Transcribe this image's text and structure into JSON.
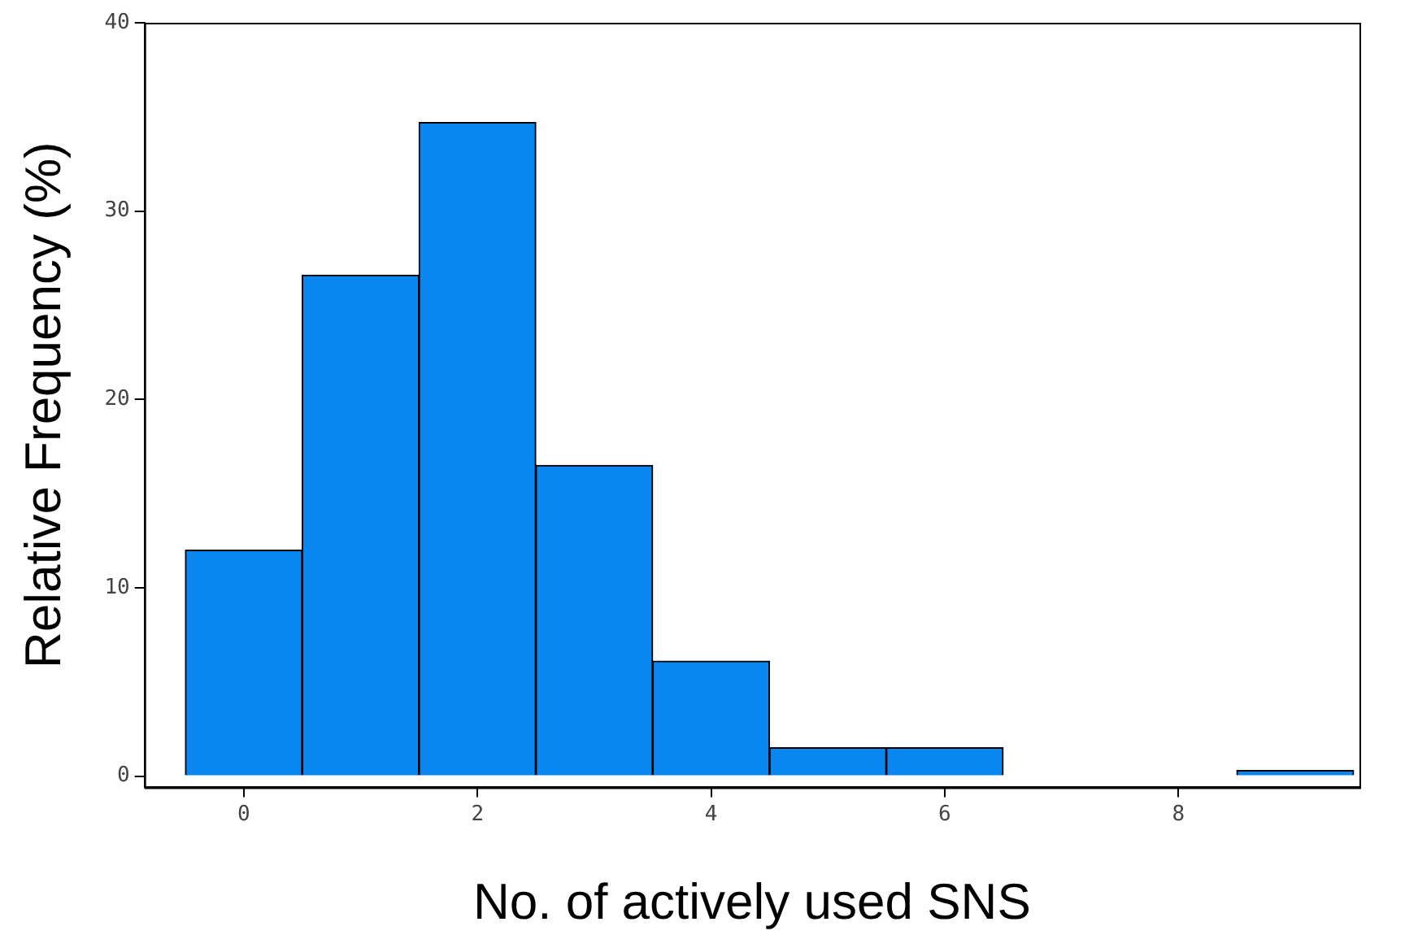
{
  "chart_data": {
    "type": "histogram",
    "xlabel": "No. of actively used SNS",
    "ylabel": "Relative Frequency (%)",
    "bins": [
      -0.5,
      0.5,
      1.5,
      2.5,
      3.5,
      4.5,
      5.5,
      6.5,
      7.5,
      8.5,
      9.5
    ],
    "values": [
      12.0,
      26.6,
      34.7,
      16.5,
      6.1,
      1.5,
      1.5,
      0,
      0,
      0.3
    ],
    "color": "#0a86f0",
    "xlim": [
      -0.85,
      9.55
    ],
    "xticks": [
      0,
      2,
      4,
      6,
      8
    ],
    "ylim": [
      -0.6,
      40
    ],
    "yticks": [
      0,
      10,
      20,
      30,
      40
    ],
    "grid": false,
    "legend": false
  }
}
